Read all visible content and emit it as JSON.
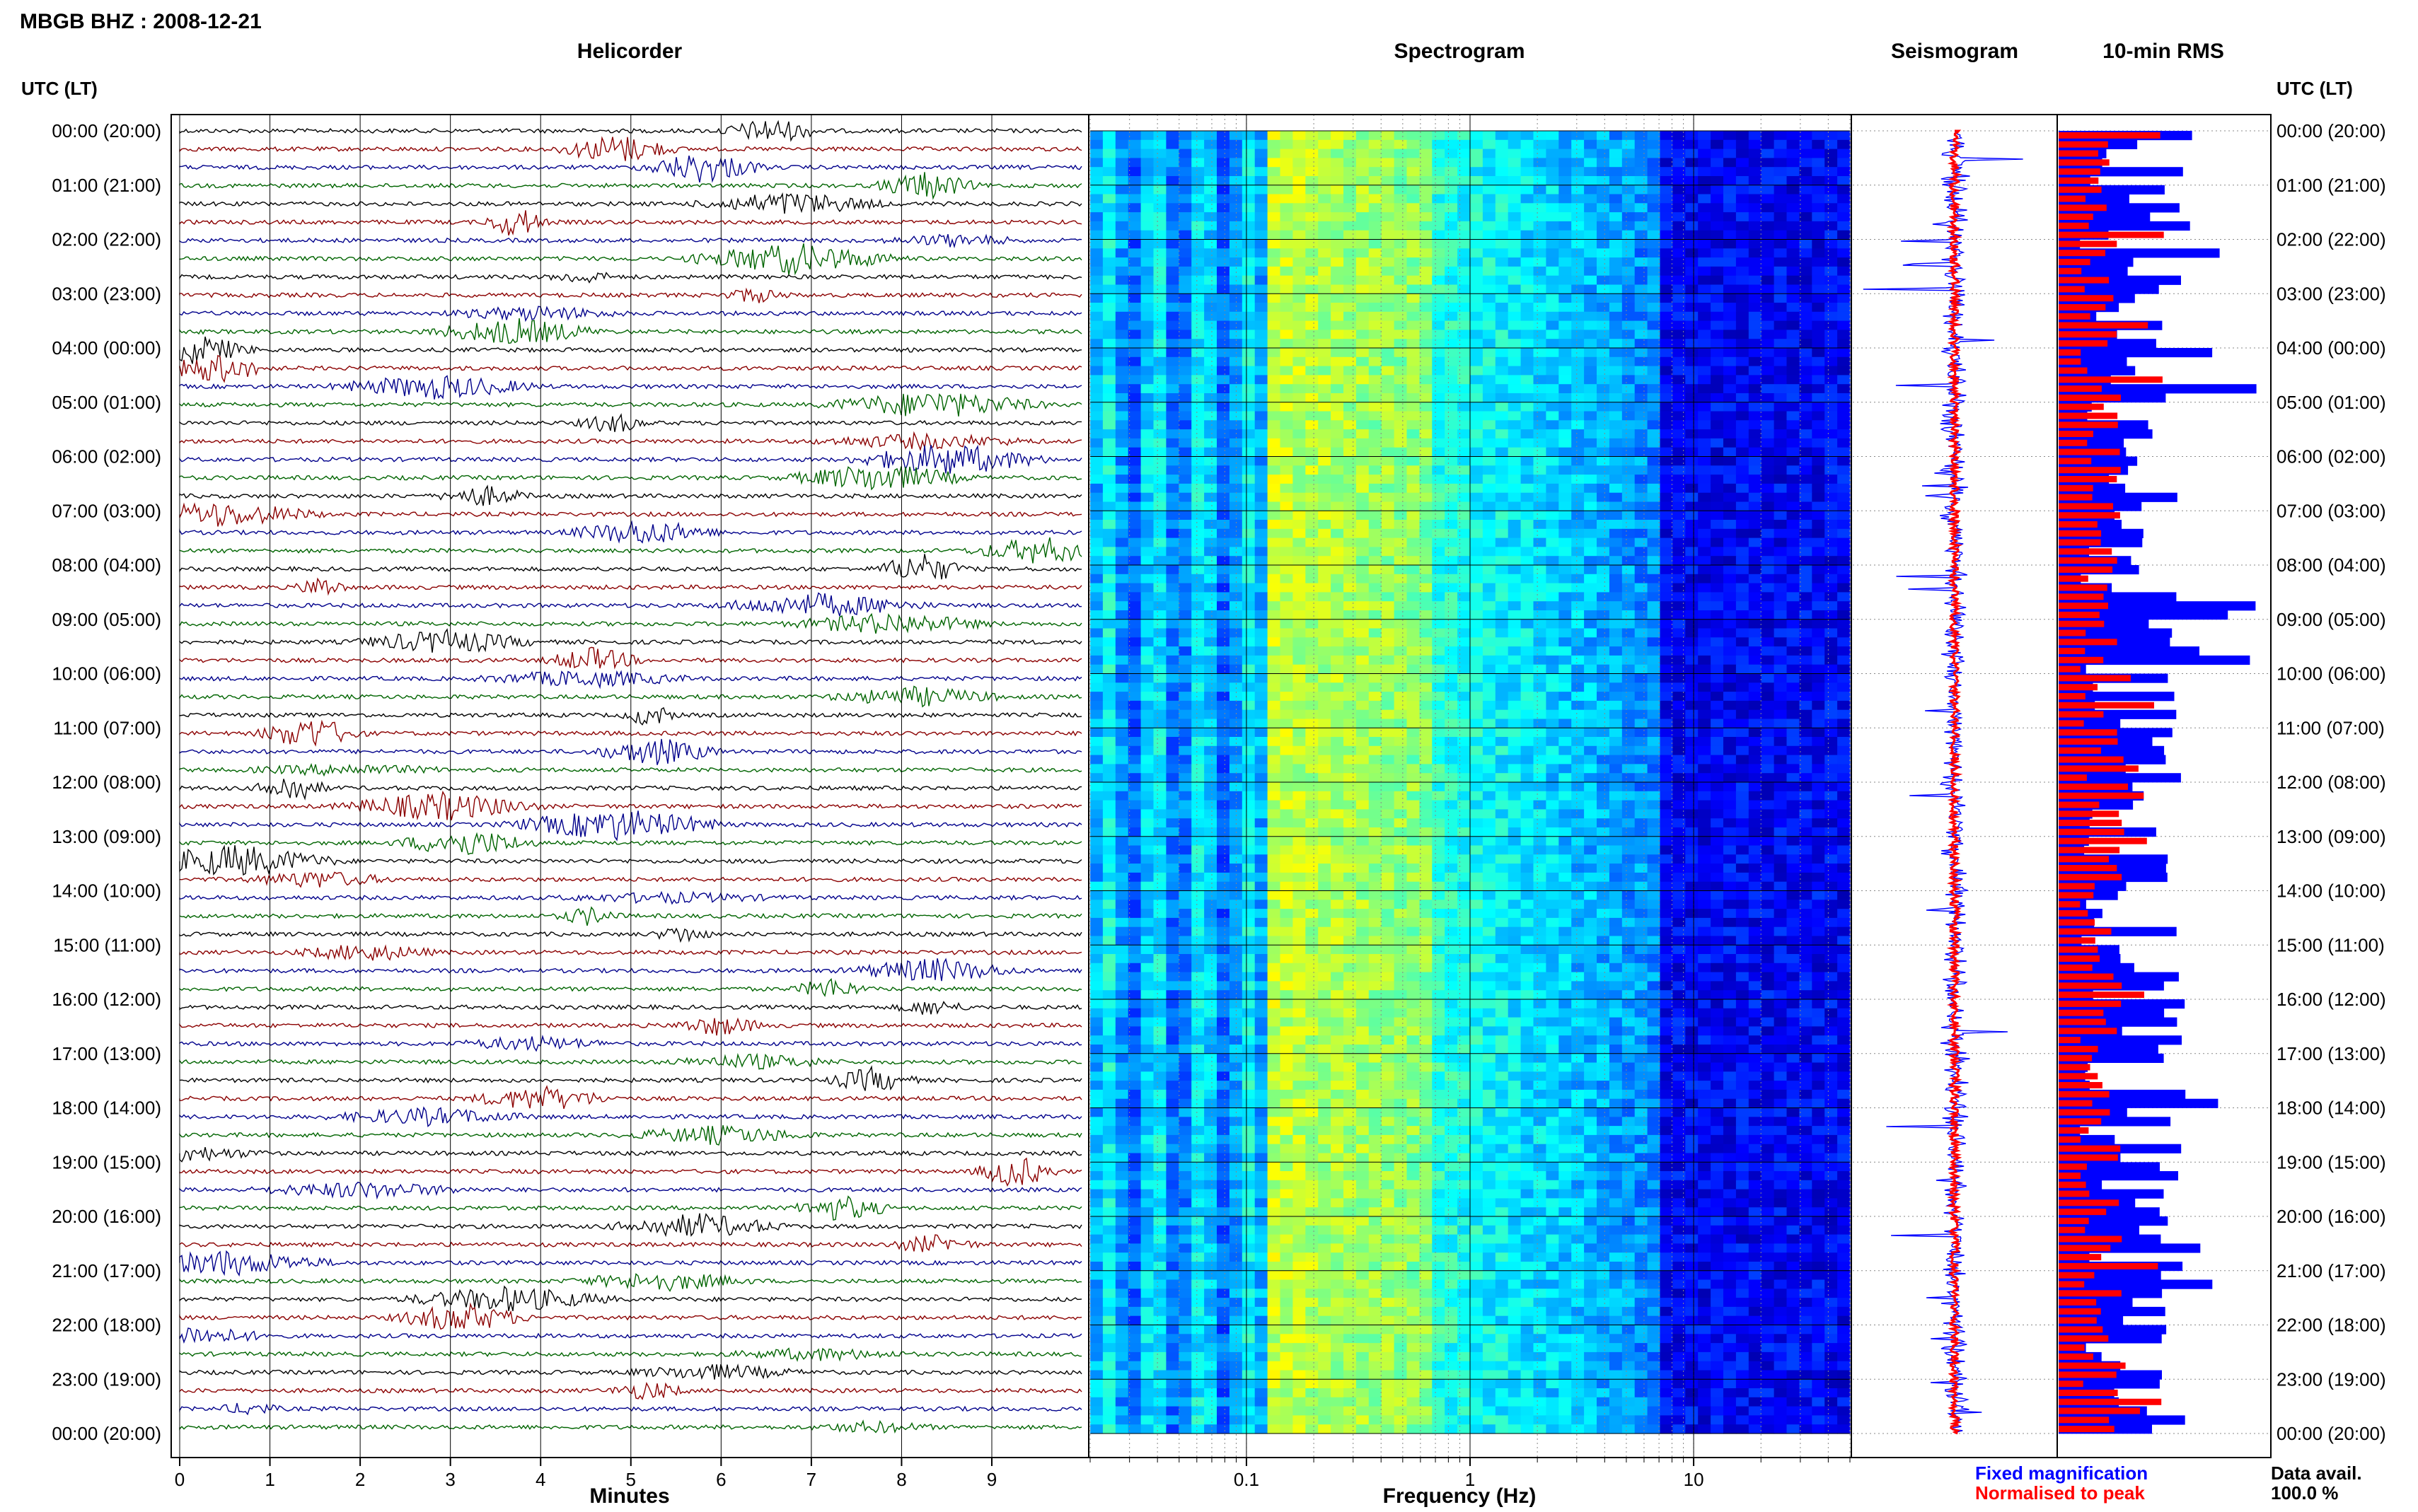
{
  "header": {
    "station": "MBGB BHZ : 2008-12-21"
  },
  "panels": {
    "helicorder": "Helicorder",
    "spectrogram": "Spectrogram",
    "seismogram": "Seismogram",
    "rms": "10-min RMS"
  },
  "axis": {
    "utc_label_left": "UTC (LT)",
    "utc_label_right": "UTC (LT)",
    "minutes_label": "Minutes",
    "frequency_label": "Frequency (Hz)",
    "minute_ticks": [
      "0",
      "1",
      "2",
      "3",
      "4",
      "5",
      "6",
      "7",
      "8",
      "9"
    ],
    "frequency_ticks": [
      "0.1",
      "1",
      "10"
    ]
  },
  "legend": {
    "fixed": "Fixed magnification",
    "normalised": "Normalised to peak",
    "fixed_color": "#0000ff",
    "normalised_color": "#ff0000"
  },
  "data_avail": {
    "label": "Data avail.",
    "value": "100.0 %"
  },
  "chart_data": [
    {
      "type": "line",
      "panel": "helicorder",
      "x_range_minutes": [
        0,
        10
      ],
      "trace_colors": [
        "#000000",
        "#8b0000",
        "#00008b",
        "#006400"
      ],
      "hour_labels": [
        "00:00 (20:00)",
        "01:00 (21:00)",
        "02:00 (22:00)",
        "03:00 (23:00)",
        "04:00 (00:00)",
        "05:00 (01:00)",
        "06:00 (02:00)",
        "07:00 (03:00)",
        "08:00 (04:00)",
        "09:00 (05:00)",
        "10:00 (06:00)",
        "11:00 (07:00)",
        "12:00 (08:00)",
        "13:00 (09:00)",
        "14:00 (10:00)",
        "15:00 (11:00)",
        "16:00 (12:00)",
        "17:00 (13:00)",
        "18:00 (14:00)",
        "19:00 (15:00)",
        "20:00 (16:00)",
        "21:00 (17:00)",
        "22:00 (18:00)",
        "23:00 (19:00)",
        "00:00 (20:00)"
      ],
      "grid": true
    },
    {
      "type": "heatmap",
      "panel": "spectrogram",
      "x_scale": "log",
      "x_range_hz": [
        0.02,
        50
      ],
      "colormap": "jet",
      "grid": true
    },
    {
      "type": "line",
      "panel": "seismogram",
      "series": [
        {
          "name": "Fixed magnification",
          "color": "#0000ff"
        },
        {
          "name": "Normalised to peak",
          "color": "#ff0000"
        }
      ]
    },
    {
      "type": "bar",
      "panel": "rms",
      "series": [
        {
          "name": "Fixed magnification",
          "color": "#0000ff"
        },
        {
          "name": "Normalised to peak",
          "color": "#ff0000"
        }
      ]
    }
  ]
}
